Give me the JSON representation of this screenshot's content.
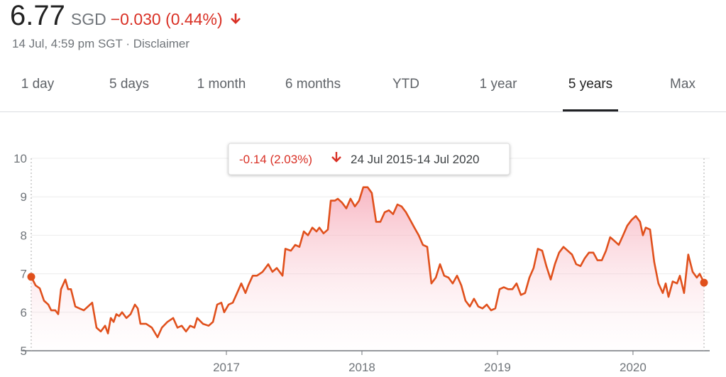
{
  "quote": {
    "price": "6.77",
    "currency": "SGD",
    "change": "−0.030 (0.44%)",
    "timestamp": "14 Jul, 4:59 pm SGT · Disclaimer"
  },
  "tabs": [
    "1 day",
    "5 days",
    "1 month",
    "6 months",
    "YTD",
    "1 year",
    "5 years",
    "Max"
  ],
  "selected_tab": 6,
  "chart_data": {
    "type": "line",
    "change_label": "-0.14 (2.03%)",
    "range_label": "24 Jul 2015-14 Jul 2020",
    "color": "#e0501c",
    "grid": true,
    "xlim": [
      2015.56,
      2020.524
    ],
    "xticks": [
      2017,
      2018,
      2019,
      2020
    ],
    "ylim": [
      5,
      10
    ],
    "yticks": [
      5,
      6,
      7,
      8,
      9,
      10
    ],
    "x": [
      2015.56,
      2015.592,
      2015.623,
      2015.654,
      2015.686,
      2015.707,
      2015.738,
      2015.759,
      2015.78,
      2015.812,
      2015.832,
      2015.853,
      2015.885,
      2015.916,
      2015.948,
      2015.979,
      2016.01,
      2016.042,
      2016.073,
      2016.105,
      2016.126,
      2016.147,
      2016.168,
      2016.188,
      2016.209,
      2016.23,
      2016.262,
      2016.293,
      2016.325,
      2016.346,
      2016.366,
      2016.408,
      2016.45,
      2016.492,
      2016.524,
      2016.565,
      2016.607,
      2016.639,
      2016.67,
      2016.702,
      2016.733,
      2016.764,
      2016.785,
      2016.827,
      2016.869,
      2016.901,
      2016.932,
      2016.963,
      2016.984,
      2017.016,
      2017.047,
      2017.079,
      2017.11,
      2017.141,
      2017.162,
      2017.194,
      2017.225,
      2017.267,
      2017.309,
      2017.34,
      2017.372,
      2017.414,
      2017.435,
      2017.476,
      2017.508,
      2017.539,
      2017.571,
      2017.602,
      2017.634,
      2017.665,
      2017.686,
      2017.717,
      2017.749,
      2017.77,
      2017.801,
      2017.822,
      2017.853,
      2017.885,
      2017.916,
      2017.948,
      2017.979,
      2018.01,
      2018.042,
      2018.073,
      2018.105,
      2018.136,
      2018.168,
      2018.199,
      2018.23,
      2018.262,
      2018.293,
      2018.325,
      2018.356,
      2018.387,
      2018.419,
      2018.45,
      2018.482,
      2018.513,
      2018.545,
      2018.576,
      2018.607,
      2018.639,
      2018.67,
      2018.702,
      2018.733,
      2018.764,
      2018.796,
      2018.827,
      2018.859,
      2018.89,
      2018.921,
      2018.953,
      2018.984,
      2019.016,
      2019.047,
      2019.079,
      2019.11,
      2019.141,
      2019.173,
      2019.204,
      2019.236,
      2019.267,
      2019.298,
      2019.33,
      2019.361,
      2019.393,
      2019.424,
      2019.455,
      2019.487,
      2019.518,
      2019.55,
      2019.581,
      2019.613,
      2019.644,
      2019.675,
      2019.707,
      2019.738,
      2019.77,
      2019.801,
      2019.832,
      2019.864,
      2019.895,
      2019.927,
      2019.958,
      2019.99,
      2020.021,
      2020.052,
      2020.073,
      2020.094,
      2020.126,
      2020.157,
      2020.188,
      2020.22,
      2020.241,
      2020.262,
      2020.293,
      2020.325,
      2020.346,
      2020.377,
      2020.408,
      2020.44,
      2020.471,
      2020.492,
      2020.524
    ],
    "values": [
      6.92,
      6.7,
      6.62,
      6.3,
      6.2,
      6.05,
      6.05,
      5.95,
      6.6,
      6.85,
      6.6,
      6.6,
      6.15,
      6.1,
      6.05,
      6.15,
      6.25,
      5.6,
      5.5,
      5.65,
      5.45,
      5.85,
      5.75,
      5.95,
      5.9,
      6.0,
      5.85,
      5.95,
      6.2,
      6.1,
      5.7,
      5.7,
      5.6,
      5.35,
      5.6,
      5.75,
      5.85,
      5.6,
      5.65,
      5.5,
      5.65,
      5.6,
      5.85,
      5.7,
      5.65,
      5.75,
      6.2,
      6.25,
      6.0,
      6.2,
      6.25,
      6.5,
      6.75,
      6.5,
      6.7,
      6.95,
      6.95,
      7.05,
      7.25,
      7.05,
      7.15,
      6.95,
      7.65,
      7.6,
      7.75,
      7.7,
      8.1,
      8.0,
      8.2,
      8.1,
      8.2,
      8.05,
      8.15,
      8.9,
      8.9,
      8.95,
      8.85,
      8.7,
      8.95,
      8.75,
      8.9,
      9.25,
      9.25,
      9.1,
      8.35,
      8.35,
      8.6,
      8.65,
      8.55,
      8.8,
      8.75,
      8.6,
      8.4,
      8.2,
      8.0,
      7.75,
      7.7,
      6.75,
      6.9,
      7.25,
      6.95,
      6.9,
      6.75,
      6.95,
      6.7,
      6.3,
      6.15,
      6.35,
      6.15,
      6.1,
      6.2,
      6.05,
      6.1,
      6.6,
      6.65,
      6.6,
      6.6,
      6.75,
      6.45,
      6.5,
      6.9,
      7.15,
      7.65,
      7.6,
      7.2,
      6.85,
      7.25,
      7.55,
      7.7,
      7.6,
      7.5,
      7.25,
      7.2,
      7.4,
      7.55,
      7.55,
      7.35,
      7.35,
      7.6,
      7.95,
      7.85,
      7.75,
      8.0,
      8.25,
      8.4,
      8.5,
      8.35,
      8.0,
      8.2,
      8.15,
      7.3,
      6.75,
      6.5,
      6.75,
      6.4,
      6.8,
      6.75,
      6.95,
      6.5,
      7.5,
      7.05,
      6.9,
      7.0,
      6.77
    ]
  }
}
